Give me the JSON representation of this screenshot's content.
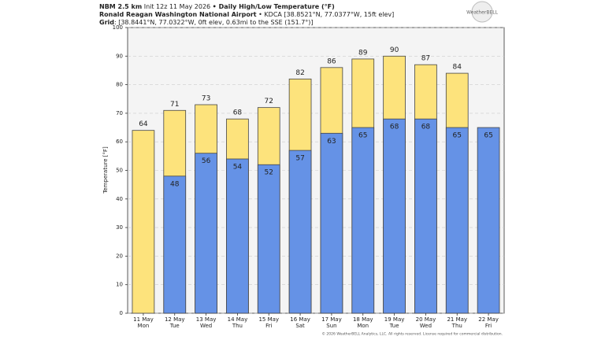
{
  "header": {
    "line1_bold": "NBM 2.5 km",
    "line1_init": "Init 12z 11 May 2026",
    "line1_title": "• Daily High/Low Temperature (°F)",
    "line2_bold": "Ronald Reagan Washington National Airport",
    "line2_rest": "• KDCA [38.8521°N, 77.0377°W, 15ft elev]",
    "line3_bold": "Grid",
    "line3_rest": ": [38.8441°N, 77.0322°W, 0ft elev, 0.63mi to the SSE (151.7°)]",
    "logo": "WeatherBELL"
  },
  "chart_data": {
    "type": "bar",
    "ylabel": "Temperature [°F]",
    "categories": [
      [
        "11 May",
        "Mon"
      ],
      [
        "12 May",
        "Tue"
      ],
      [
        "13 May",
        "Wed"
      ],
      [
        "14 May",
        "Thu"
      ],
      [
        "15 May",
        "Fri"
      ],
      [
        "16 May",
        "Sat"
      ],
      [
        "17 May",
        "Sun"
      ],
      [
        "18 May",
        "Mon"
      ],
      [
        "19 May",
        "Tue"
      ],
      [
        "20 May",
        "Wed"
      ],
      [
        "21 May",
        "Thu"
      ],
      [
        "22 May",
        "Fri"
      ]
    ],
    "series": [
      {
        "name": "High",
        "color": "#fde37c",
        "values": [
          64,
          71,
          73,
          68,
          72,
          82,
          86,
          89,
          90,
          87,
          84,
          null
        ]
      },
      {
        "name": "Low",
        "color": "#6592e6",
        "values": [
          null,
          48,
          56,
          54,
          52,
          57,
          63,
          65,
          68,
          68,
          65,
          65
        ]
      }
    ],
    "ylim": [
      0,
      100
    ],
    "yticks": [
      0,
      10,
      20,
      30,
      40,
      50,
      60,
      70,
      80,
      90,
      100
    ],
    "grid": true,
    "footer": "© 2026 WeatherBELL Analytics, LLC. All rights reserved. License required for commercial distribution."
  }
}
